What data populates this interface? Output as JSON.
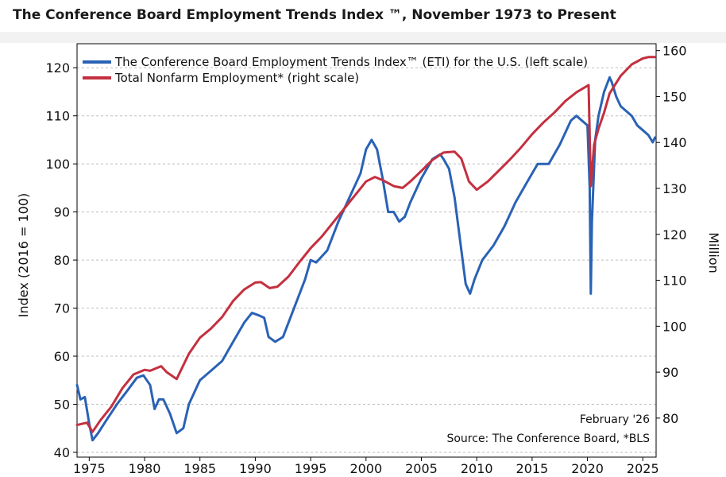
{
  "page_title": "The Conference Board Employment Trends Index ™, November 1973 to Present",
  "chart_data": {
    "type": "line",
    "title": "The Conference Board Employment Trends Index ™, November 1973 to Present",
    "ylabel": "Index (2016 = 100)",
    "y2label": "Million",
    "xlim": [
      1973.9,
      2026.2
    ],
    "ylim": [
      39,
      125
    ],
    "y2lim": [
      71.5,
      161.5
    ],
    "x_ticks": [
      1975,
      1980,
      1985,
      1990,
      1995,
      2000,
      2005,
      2010,
      2015,
      2020,
      2025
    ],
    "y_ticks": [
      40,
      50,
      60,
      70,
      80,
      90,
      100,
      110,
      120
    ],
    "y2_ticks": [
      80,
      90,
      100,
      110,
      120,
      130,
      140,
      150,
      160
    ],
    "grid": "horizontal dashed",
    "legend_position": "top-left",
    "annotations": [
      "February '26",
      "Source: The Conference Board, *BLS"
    ],
    "series": [
      {
        "name": "The Conference Board Employment Trends Index™ (ETI) for the U.S. (left scale)",
        "axis": "left",
        "color": "#2a62b5",
        "x": [
          1973.9,
          1974.2,
          1974.6,
          1975.0,
          1975.3,
          1975.8,
          1976.5,
          1977.5,
          1978.5,
          1979.3,
          1979.9,
          1980.5,
          1980.9,
          1981.3,
          1981.7,
          1982.3,
          1982.9,
          1983.5,
          1984.0,
          1985.0,
          1986.0,
          1987.0,
          1988.0,
          1989.0,
          1989.7,
          1990.3,
          1990.8,
          1991.2,
          1991.8,
          1992.5,
          1993.5,
          1994.5,
          1995.0,
          1995.5,
          1996.5,
          1997.5,
          1998.5,
          1999.5,
          2000.0,
          2000.5,
          2001.0,
          2001.5,
          2002.0,
          2002.5,
          2003.0,
          2003.5,
          2004.0,
          2005.0,
          2006.0,
          2006.7,
          2007.0,
          2007.5,
          2008.0,
          2008.5,
          2009.0,
          2009.4,
          2009.8,
          2010.5,
          2011.5,
          2012.5,
          2013.5,
          2014.5,
          2015.5,
          2016.5,
          2017.5,
          2018.5,
          2019.0,
          2019.5,
          2020.0,
          2020.2,
          2020.3,
          2020.4,
          2020.7,
          2021.0,
          2021.5,
          2022.0,
          2022.2,
          2022.6,
          2023.0,
          2023.5,
          2024.0,
          2024.5,
          2025.0,
          2025.5,
          2025.9,
          2026.1
        ],
        "values": [
          54,
          51,
          51.5,
          46,
          42.5,
          44,
          46.5,
          50,
          53,
          55.5,
          56,
          54,
          49,
          51,
          51,
          48,
          44,
          45,
          50,
          55,
          57,
          59,
          63,
          67,
          69,
          68.5,
          68,
          64,
          63,
          64,
          70,
          76,
          80,
          79.5,
          82,
          88,
          93,
          98,
          103,
          105,
          103,
          97,
          90,
          90,
          88,
          89,
          92,
          97,
          101,
          102,
          101,
          99,
          93,
          84,
          75,
          73,
          76,
          80,
          83,
          87,
          92,
          96,
          100,
          100,
          104,
          109,
          110,
          109,
          108,
          95,
          73,
          88,
          105,
          110,
          115,
          118,
          117,
          114,
          112,
          111,
          110,
          108,
          107,
          106,
          104.5,
          105.5
        ]
      },
      {
        "name": "Total Nonfarm Employment* (right scale)",
        "axis": "right",
        "color": "#c4303f",
        "x": [
          1973.9,
          1974.8,
          1975.3,
          1976.0,
          1977.0,
          1978.0,
          1979.0,
          1980.0,
          1980.5,
          1981.5,
          1982.0,
          1982.9,
          1984.0,
          1985.0,
          1986.0,
          1987.0,
          1988.0,
          1989.0,
          1990.0,
          1990.5,
          1991.3,
          1992.0,
          1993.0,
          1994.0,
          1995.0,
          1996.0,
          1997.0,
          1998.0,
          1999.0,
          2000.0,
          2000.8,
          2001.5,
          2002.5,
          2003.3,
          2004.0,
          2005.0,
          2006.0,
          2007.0,
          2008.0,
          2008.6,
          2009.3,
          2010.0,
          2011.0,
          2012.0,
          2013.0,
          2014.0,
          2015.0,
          2016.0,
          2017.0,
          2018.0,
          2019.0,
          2020.1,
          2020.3,
          2020.6,
          2021.0,
          2021.5,
          2022.0,
          2023.0,
          2024.0,
          2025.0,
          2025.5,
          2026.1
        ],
        "values": [
          78.5,
          79,
          77,
          79.5,
          82.5,
          86.5,
          89.5,
          90.5,
          90.3,
          91.3,
          90,
          88.5,
          94,
          97.5,
          99.5,
          102,
          105.5,
          108,
          109.5,
          109.6,
          108.3,
          108.6,
          110.8,
          114,
          117,
          119.5,
          122.5,
          125.5,
          128.5,
          131.5,
          132.5,
          131.8,
          130.5,
          130.1,
          131.5,
          133.8,
          136.2,
          137.8,
          138,
          136.5,
          131.5,
          129.7,
          131.5,
          133.9,
          136.3,
          138.9,
          141.8,
          144.3,
          146.5,
          149,
          150.9,
          152.5,
          130.5,
          139.5,
          143,
          146.5,
          150.7,
          154.5,
          157,
          158.3,
          158.6,
          158.6
        ]
      }
    ]
  }
}
